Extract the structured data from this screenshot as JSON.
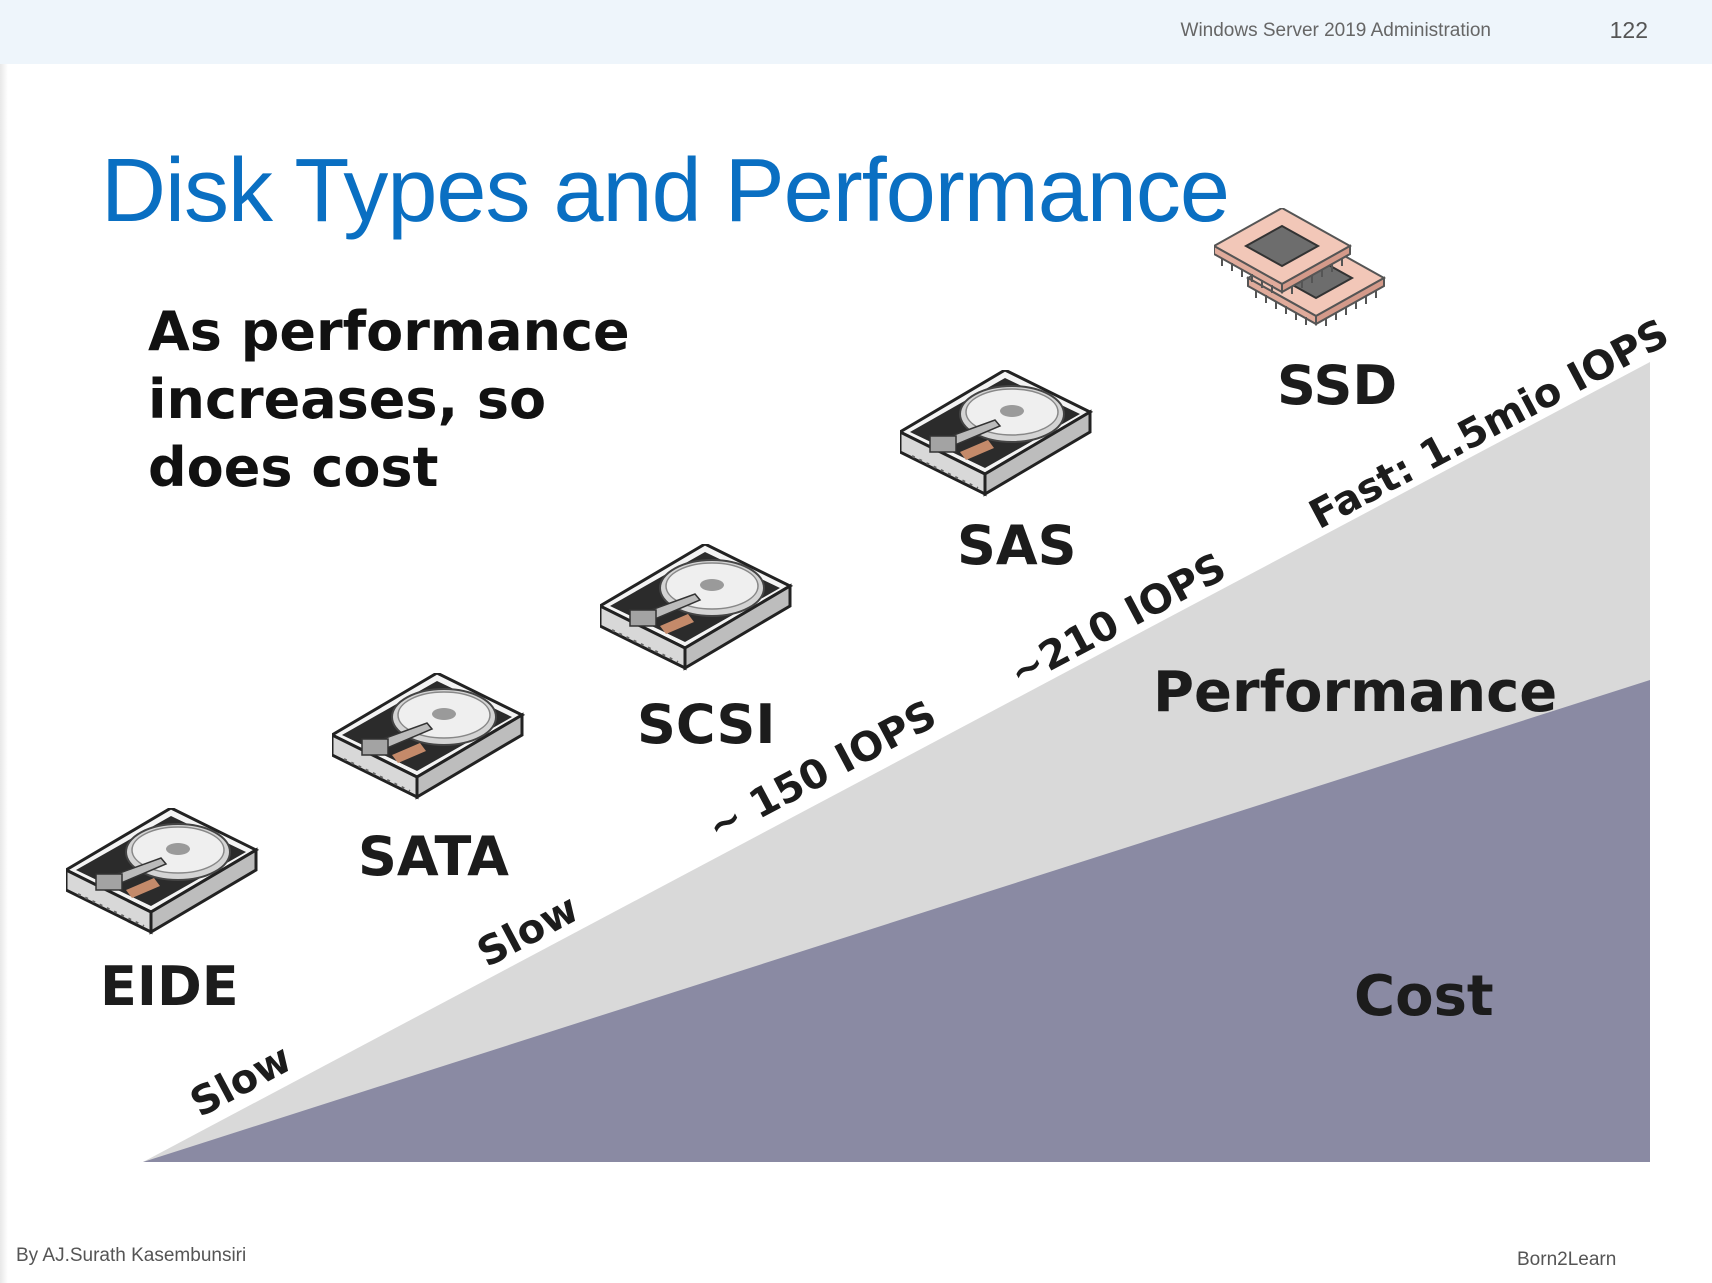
{
  "header": {
    "course": "Windows Server 2019 Administration",
    "page_number": "122"
  },
  "title": "Disk Types and Performance",
  "subtitle": "As performance increases, so does cost",
  "disks": [
    {
      "label": "EIDE",
      "icon": "hard-disk-icon"
    },
    {
      "label": "SATA",
      "icon": "hard-disk-icon"
    },
    {
      "label": "SCSI",
      "icon": "hard-disk-icon"
    },
    {
      "label": "SAS",
      "icon": "hard-disk-icon"
    },
    {
      "label": "SSD",
      "icon": "ssd-chip-icon"
    }
  ],
  "speed_labels": [
    "Slow",
    "Slow",
    "~ 150 IOPS",
    "~210 IOPS",
    "Fast: 1.5mio IOPS"
  ],
  "areas": {
    "performance": "Performance",
    "cost": "Cost"
  },
  "colors": {
    "title": "#0a6fc2",
    "performance_area": "#d9d9d9",
    "cost_area": "#8a8aa3",
    "ssd_chip": "#f2c7b8"
  },
  "footer": {
    "author": "By AJ.Surath Kasembunsiri",
    "brand": "Born2Learn"
  }
}
